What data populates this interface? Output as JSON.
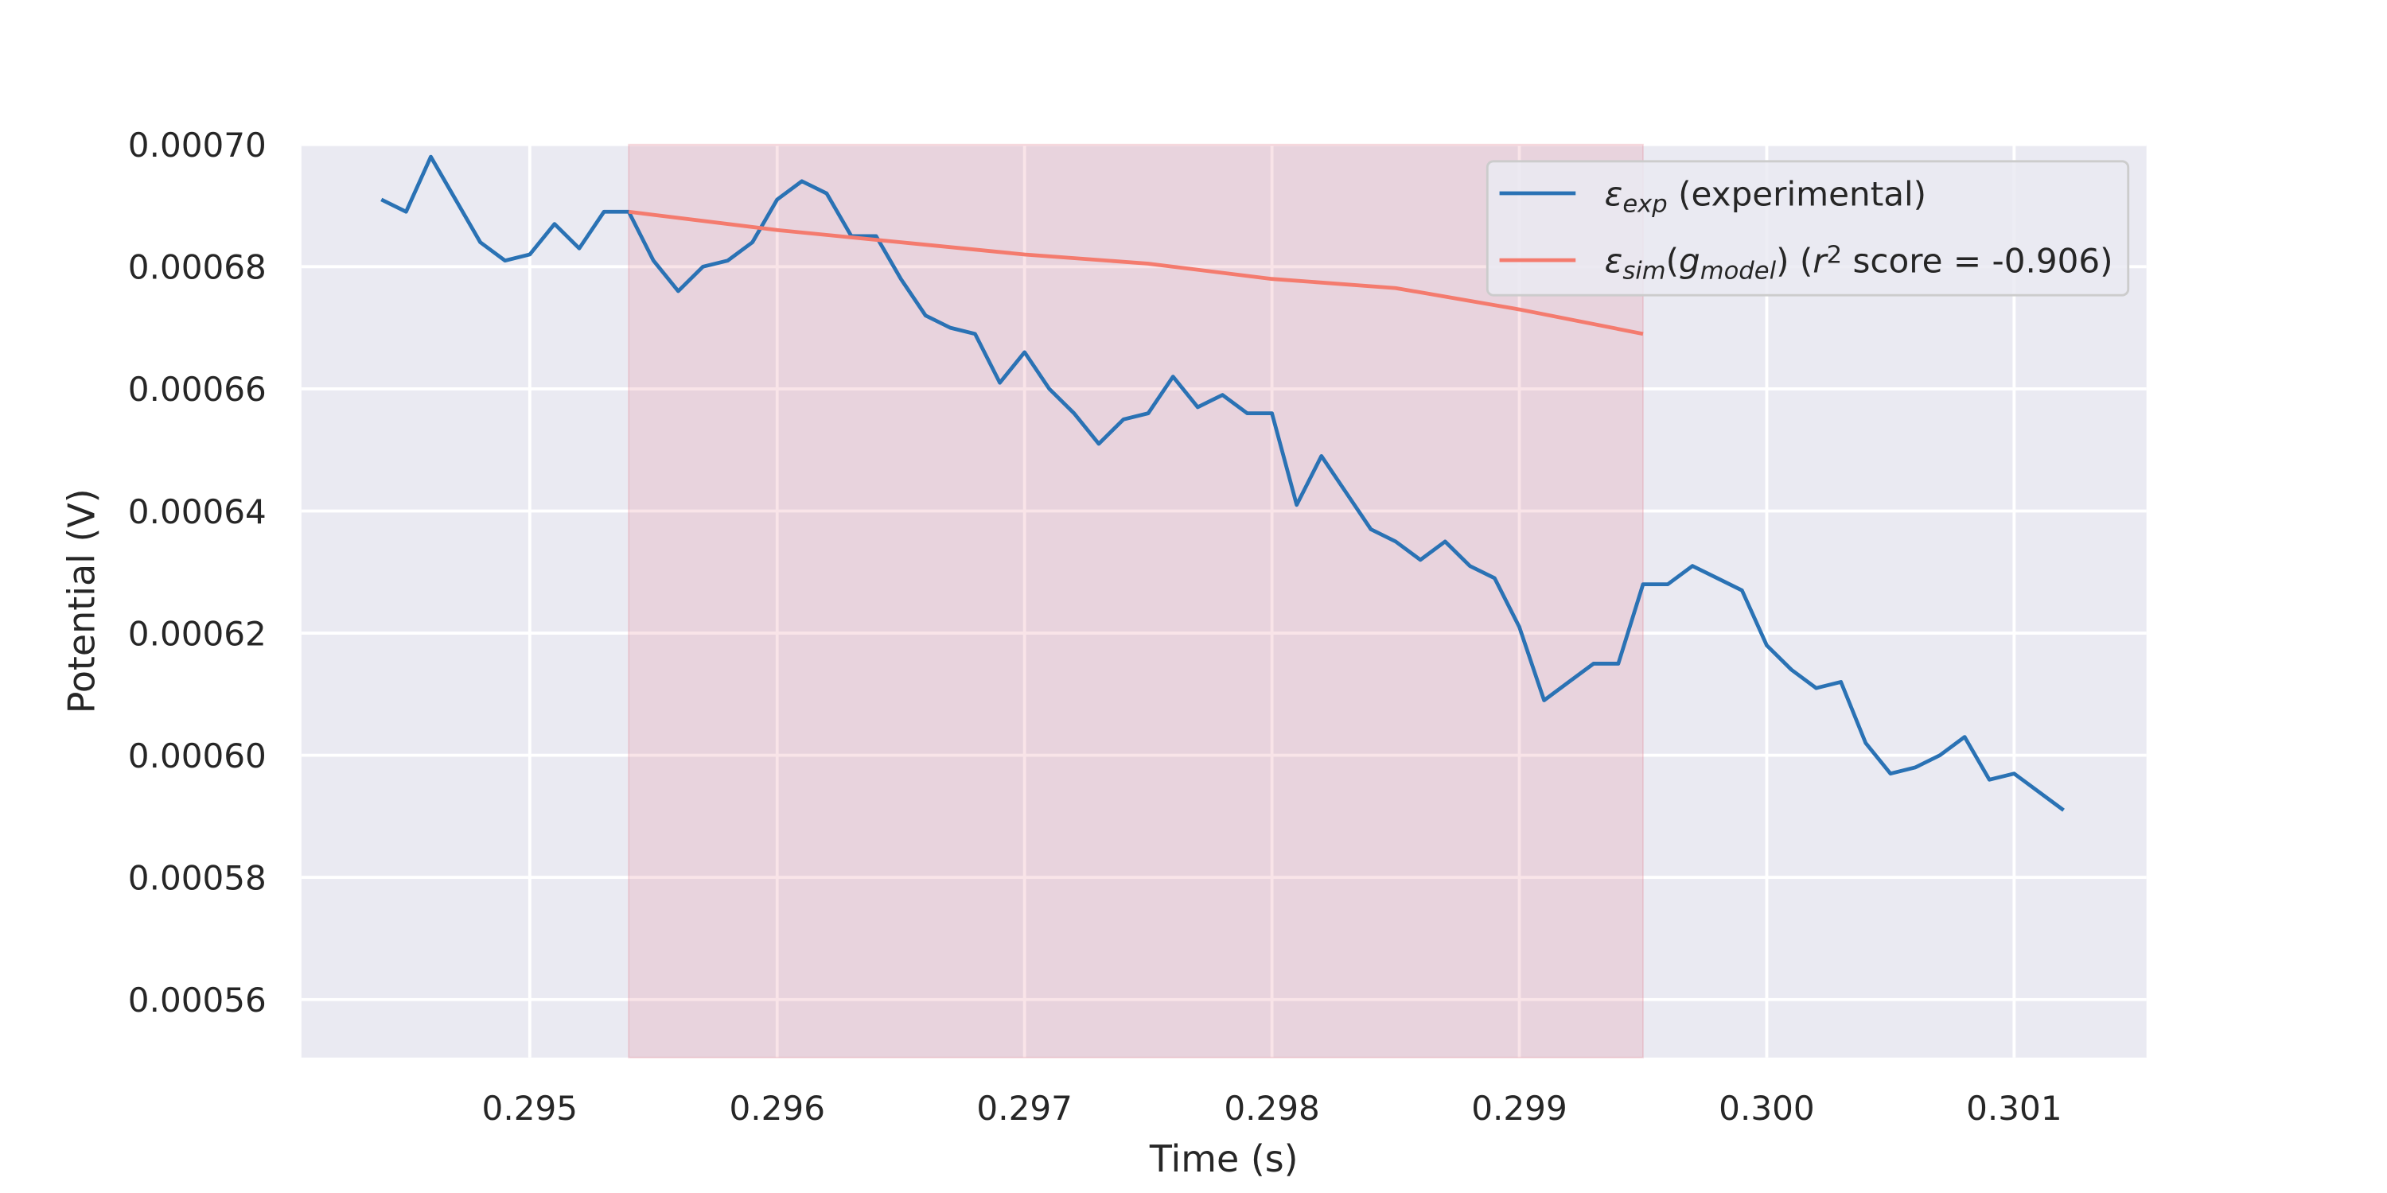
{
  "chart_data": {
    "type": "line",
    "xlabel": "Time (s)",
    "ylabel": "Potential (V)",
    "xlim": [
      0.294077,
      0.301535
    ],
    "ylim": [
      0.0005505,
      0.0007
    ],
    "xticks": [
      0.295,
      0.296,
      0.297,
      0.298,
      0.299,
      {
        "value": 0.3,
        "label": "0.300"
      },
      0.301
    ],
    "yticks": [
      0.00056,
      0.00058,
      {
        "value": 0.0006,
        "label": "0.00060"
      },
      0.00062,
      0.00064,
      0.00066,
      0.00068,
      {
        "value": 0.0007,
        "label": "0.00070"
      }
    ],
    "grid": true,
    "legend": "upper right",
    "highlight_span": [
      0.2954,
      0.2995
    ],
    "span_color": "#e07a8a",
    "series": [
      {
        "name": [
          {
            "text": "ε",
            "italic": true
          },
          {
            "text": "exp",
            "italic": true,
            "sub": true
          },
          {
            "text": " (experimental)"
          }
        ],
        "color": "#2a72b4",
        "x": [
          0.2944,
          0.2945,
          0.2946,
          0.2947,
          0.2948,
          0.2949,
          0.295,
          0.2951,
          0.2952,
          0.2953,
          0.2954,
          0.2955,
          0.2956,
          0.2957,
          0.2958,
          0.2959,
          0.296,
          0.2961,
          0.2962,
          0.2963,
          0.2964,
          0.2965,
          0.2966,
          0.2967,
          0.2968,
          0.2969,
          0.297,
          0.2971,
          0.2972,
          0.2973,
          0.2974,
          0.2975,
          0.2976,
          0.2977,
          0.2978,
          0.2979,
          0.298,
          0.2981,
          0.2982,
          0.2983,
          0.2984,
          0.2985,
          0.2986,
          0.2987,
          0.2988,
          0.2989,
          0.299,
          0.2991,
          0.2992,
          0.2993,
          0.2994,
          0.2995,
          0.2996,
          0.2997,
          0.2998,
          0.2999,
          0.3,
          0.3001,
          0.3002,
          0.3003,
          0.3004,
          0.3005,
          0.3006,
          0.3007,
          0.3008,
          0.3009,
          0.301,
          0.3011,
          0.3012
        ],
        "values": [
          0.000691,
          0.000689,
          0.000698,
          0.000691,
          0.000684,
          0.000681,
          0.000682,
          0.000687,
          0.000683,
          0.000689,
          0.000689,
          0.000681,
          0.000676,
          0.00068,
          0.000681,
          0.000684,
          0.000691,
          0.000694,
          0.000692,
          0.000685,
          0.000685,
          0.000678,
          0.000672,
          0.00067,
          0.000669,
          0.000661,
          0.000666,
          0.00066,
          0.000656,
          0.000651,
          0.000655,
          0.000656,
          0.000662,
          0.000657,
          0.000659,
          0.000656,
          0.000656,
          0.000641,
          0.000649,
          0.000643,
          0.000637,
          0.000635,
          0.000632,
          0.000635,
          0.000631,
          0.000629,
          0.000621,
          0.000609,
          0.000612,
          0.000615,
          0.000615,
          0.000628,
          0.000628,
          0.000631,
          0.000629,
          0.000627,
          0.000618,
          0.000614,
          0.000611,
          0.000612,
          0.000602,
          0.000597,
          0.000598,
          0.0006,
          0.000603,
          0.000596,
          0.000597,
          0.000594,
          0.000591
        ]
      },
      {
        "name": [
          {
            "text": "ε",
            "italic": true
          },
          {
            "text": "sim",
            "italic": true,
            "sub": true
          },
          {
            "text": "("
          },
          {
            "text": "g",
            "italic": true
          },
          {
            "text": "model",
            "italic": true,
            "sub": true
          },
          {
            "text": ") ("
          },
          {
            "text": "r",
            "italic": true
          },
          {
            "text": "2",
            "sup": true
          },
          {
            "text": " score = -0.906)"
          }
        ],
        "color": "#f47b6e",
        "x": [
          0.2954,
          0.2955,
          0.296,
          0.2965,
          0.297,
          0.2975,
          0.298,
          0.2985,
          0.299,
          0.2995
        ],
        "values": [
          0.000689,
          0.0006885,
          0.000686,
          0.000684,
          0.000682,
          0.0006805,
          0.000678,
          0.0006765,
          0.000673,
          0.000669
        ]
      }
    ]
  }
}
